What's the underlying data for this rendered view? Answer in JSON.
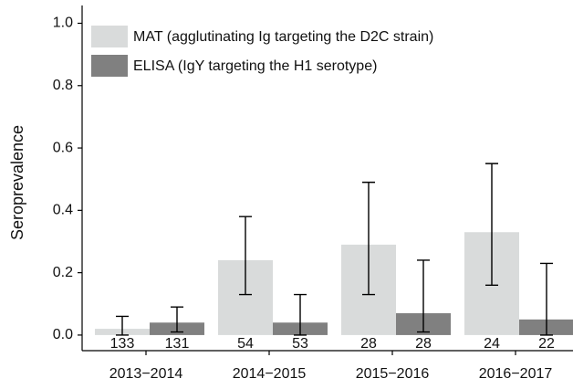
{
  "chart_data": {
    "type": "bar",
    "y_label": "Seroprevalence",
    "categories": [
      "2013−2014",
      "2014−2015",
      "2015−2016",
      "2016−2017"
    ],
    "series": [
      {
        "name": "MAT (agglutinating Ig targeting the D2C strain)",
        "color": "#d9dbdb",
        "values": [
          0.02,
          0.24,
          0.29,
          0.33
        ],
        "lower": [
          0.0,
          0.13,
          0.13,
          0.16
        ],
        "upper": [
          0.06,
          0.38,
          0.49,
          0.55
        ],
        "n": [
          133,
          54,
          28,
          24
        ]
      },
      {
        "name": "ELISA (IgY targeting the H1 serotype)",
        "color": "#808080",
        "values": [
          0.04,
          0.04,
          0.07,
          0.05
        ],
        "lower": [
          0.01,
          0.0,
          0.01,
          0.0
        ],
        "upper": [
          0.09,
          0.13,
          0.24,
          0.23
        ],
        "n": [
          131,
          53,
          28,
          22
        ]
      }
    ],
    "ylim": [
      -0.05,
      1.06
    ],
    "yticks": [
      {
        "value": 0,
        "label": "0.0"
      },
      {
        "value": 0.2,
        "label": "0.2"
      },
      {
        "value": 0.4,
        "label": "0.4"
      },
      {
        "value": 0.6,
        "label": "0.6"
      },
      {
        "value": 0.8,
        "label": "0.8"
      },
      {
        "value": 1.0,
        "label": "1.0"
      }
    ],
    "legend": "top-left"
  }
}
